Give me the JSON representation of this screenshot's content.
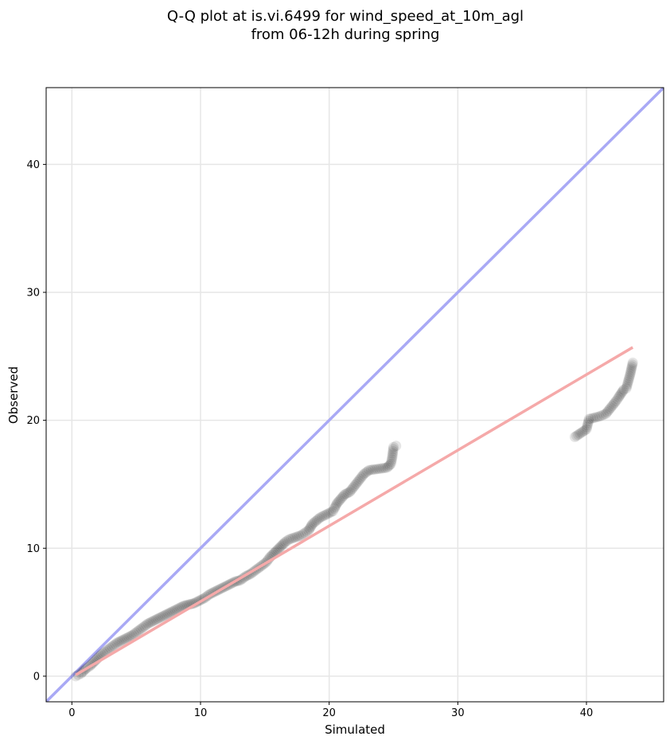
{
  "chart_data": {
    "type": "scatter",
    "title": [
      "Q-Q plot at is.vi.6499 for wind_speed_at_10m_agl",
      "from 06-12h during spring"
    ],
    "xlabel": "Simulated",
    "ylabel": "Observed",
    "xlim": [
      -2,
      46
    ],
    "ylim": [
      -2,
      46
    ],
    "xticks": [
      0,
      10,
      20,
      30,
      40
    ],
    "yticks": [
      0,
      10,
      20,
      30,
      40
    ],
    "grid": true,
    "reference_line": {
      "x": [
        -2,
        46
      ],
      "y": [
        -2,
        46
      ],
      "color": "#a9a9f5"
    },
    "fit_line": {
      "x": [
        0.3,
        43.6
      ],
      "y": [
        0.1,
        25.7
      ],
      "color": "#f5a9a9"
    },
    "points_color": "#000000",
    "points": [
      [
        0.3,
        0.0
      ],
      [
        0.5,
        0.1
      ],
      [
        0.7,
        0.2
      ],
      [
        0.9,
        0.4
      ],
      [
        1.1,
        0.6
      ],
      [
        1.4,
        0.8
      ],
      [
        1.7,
        1.1
      ],
      [
        2.0,
        1.4
      ],
      [
        2.3,
        1.7
      ],
      [
        2.7,
        2.0
      ],
      [
        3.1,
        2.3
      ],
      [
        3.5,
        2.6
      ],
      [
        3.9,
        2.8
      ],
      [
        4.3,
        3.0
      ],
      [
        4.7,
        3.2
      ],
      [
        5.1,
        3.5
      ],
      [
        5.5,
        3.8
      ],
      [
        5.9,
        4.1
      ],
      [
        6.3,
        4.3
      ],
      [
        6.7,
        4.5
      ],
      [
        7.1,
        4.7
      ],
      [
        7.5,
        4.9
      ],
      [
        7.9,
        5.1
      ],
      [
        8.3,
        5.3
      ],
      [
        8.7,
        5.5
      ],
      [
        9.1,
        5.6
      ],
      [
        9.5,
        5.7
      ],
      [
        9.9,
        5.9
      ],
      [
        10.3,
        6.1
      ],
      [
        10.7,
        6.4
      ],
      [
        11.1,
        6.6
      ],
      [
        11.5,
        6.8
      ],
      [
        11.9,
        7.0
      ],
      [
        12.3,
        7.2
      ],
      [
        12.7,
        7.4
      ],
      [
        13.1,
        7.5
      ],
      [
        13.5,
        7.8
      ],
      [
        13.9,
        8.0
      ],
      [
        14.3,
        8.3
      ],
      [
        14.7,
        8.6
      ],
      [
        15.1,
        8.9
      ],
      [
        15.4,
        9.3
      ],
      [
        15.7,
        9.6
      ],
      [
        16.0,
        9.9
      ],
      [
        16.3,
        10.2
      ],
      [
        16.6,
        10.5
      ],
      [
        16.9,
        10.7
      ],
      [
        17.2,
        10.8
      ],
      [
        17.5,
        10.9
      ],
      [
        17.8,
        11.0
      ],
      [
        18.1,
        11.2
      ],
      [
        18.4,
        11.4
      ],
      [
        18.7,
        11.9
      ],
      [
        19.3,
        12.4
      ],
      [
        20.3,
        12.9
      ],
      [
        20.4,
        13.1
      ],
      [
        20.6,
        13.5
      ],
      [
        21.2,
        14.2
      ],
      [
        21.6,
        14.4
      ],
      [
        22.7,
        15.8
      ],
      [
        23.1,
        16.1
      ],
      [
        24.5,
        16.3
      ],
      [
        24.8,
        16.6
      ],
      [
        24.9,
        17.1
      ],
      [
        25.0,
        17.9
      ],
      [
        25.2,
        18.0
      ],
      [
        39.1,
        18.7
      ],
      [
        40.0,
        19.3
      ],
      [
        40.2,
        20.1
      ],
      [
        41.0,
        20.3
      ],
      [
        41.5,
        20.5
      ],
      [
        42.3,
        21.5
      ],
      [
        42.5,
        21.8
      ],
      [
        42.9,
        22.4
      ],
      [
        43.1,
        22.5
      ],
      [
        43.4,
        23.6
      ],
      [
        43.6,
        24.5
      ]
    ]
  }
}
